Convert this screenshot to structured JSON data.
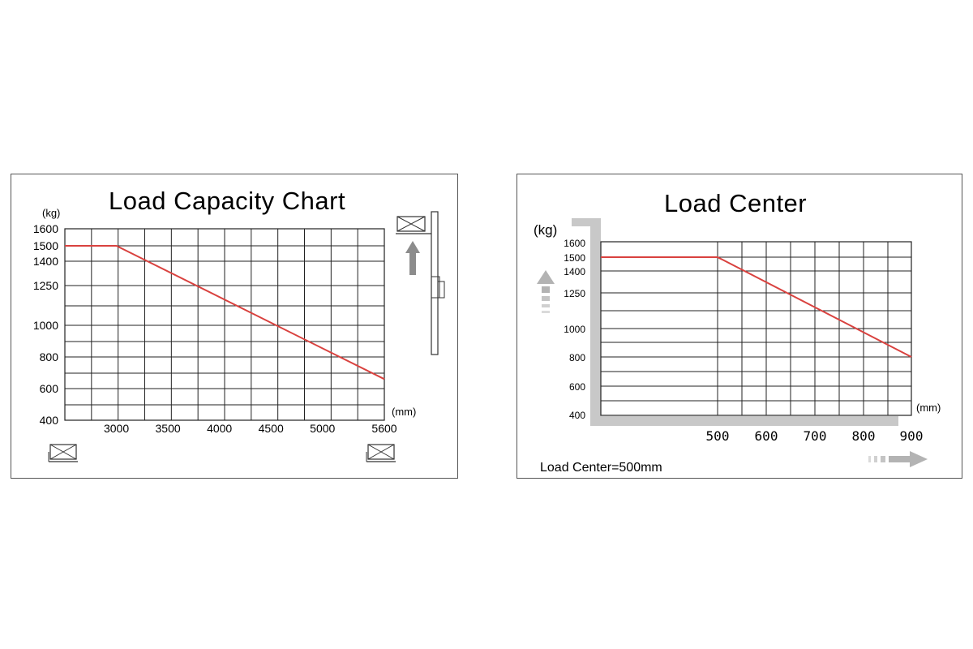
{
  "chart_data": [
    {
      "type": "line",
      "title": "Load Capacity Chart",
      "ylabel": "(kg)",
      "xlabel": "(mm)",
      "yticks": [
        400,
        600,
        800,
        1000,
        1250,
        1400,
        1500,
        1600
      ],
      "xticks": [
        3000,
        3500,
        4000,
        4500,
        5000,
        5600
      ],
      "ylim": [
        400,
        1600
      ],
      "xlim": [
        2500,
        5600
      ],
      "series": [
        {
          "x": [
            2500,
            3000,
            5600
          ],
          "y": [
            1500,
            1500,
            660
          ]
        }
      ],
      "line_color": "#d9423f",
      "grid": true,
      "icons": [
        "pallet-icon",
        "mast-lift-icon",
        "up-arrow-icon"
      ]
    },
    {
      "type": "line",
      "title": "Load Center",
      "ylabel": "(kg)",
      "xlabel": "(mm)",
      "yticks": [
        400,
        600,
        800,
        1000,
        1250,
        1400,
        1500,
        1600
      ],
      "xticks": [
        500,
        600,
        700,
        800,
        900
      ],
      "ylim": [
        400,
        1600
      ],
      "xlim": [
        0,
        900
      ],
      "series": [
        {
          "x": [
            0,
            500,
            900
          ],
          "y": [
            1500,
            1500,
            800
          ]
        }
      ],
      "annotation": "Load Center=500mm",
      "line_color": "#d9423f",
      "grid": true,
      "icons": [
        "up-arrow-icon",
        "right-arrow-icon"
      ]
    }
  ]
}
